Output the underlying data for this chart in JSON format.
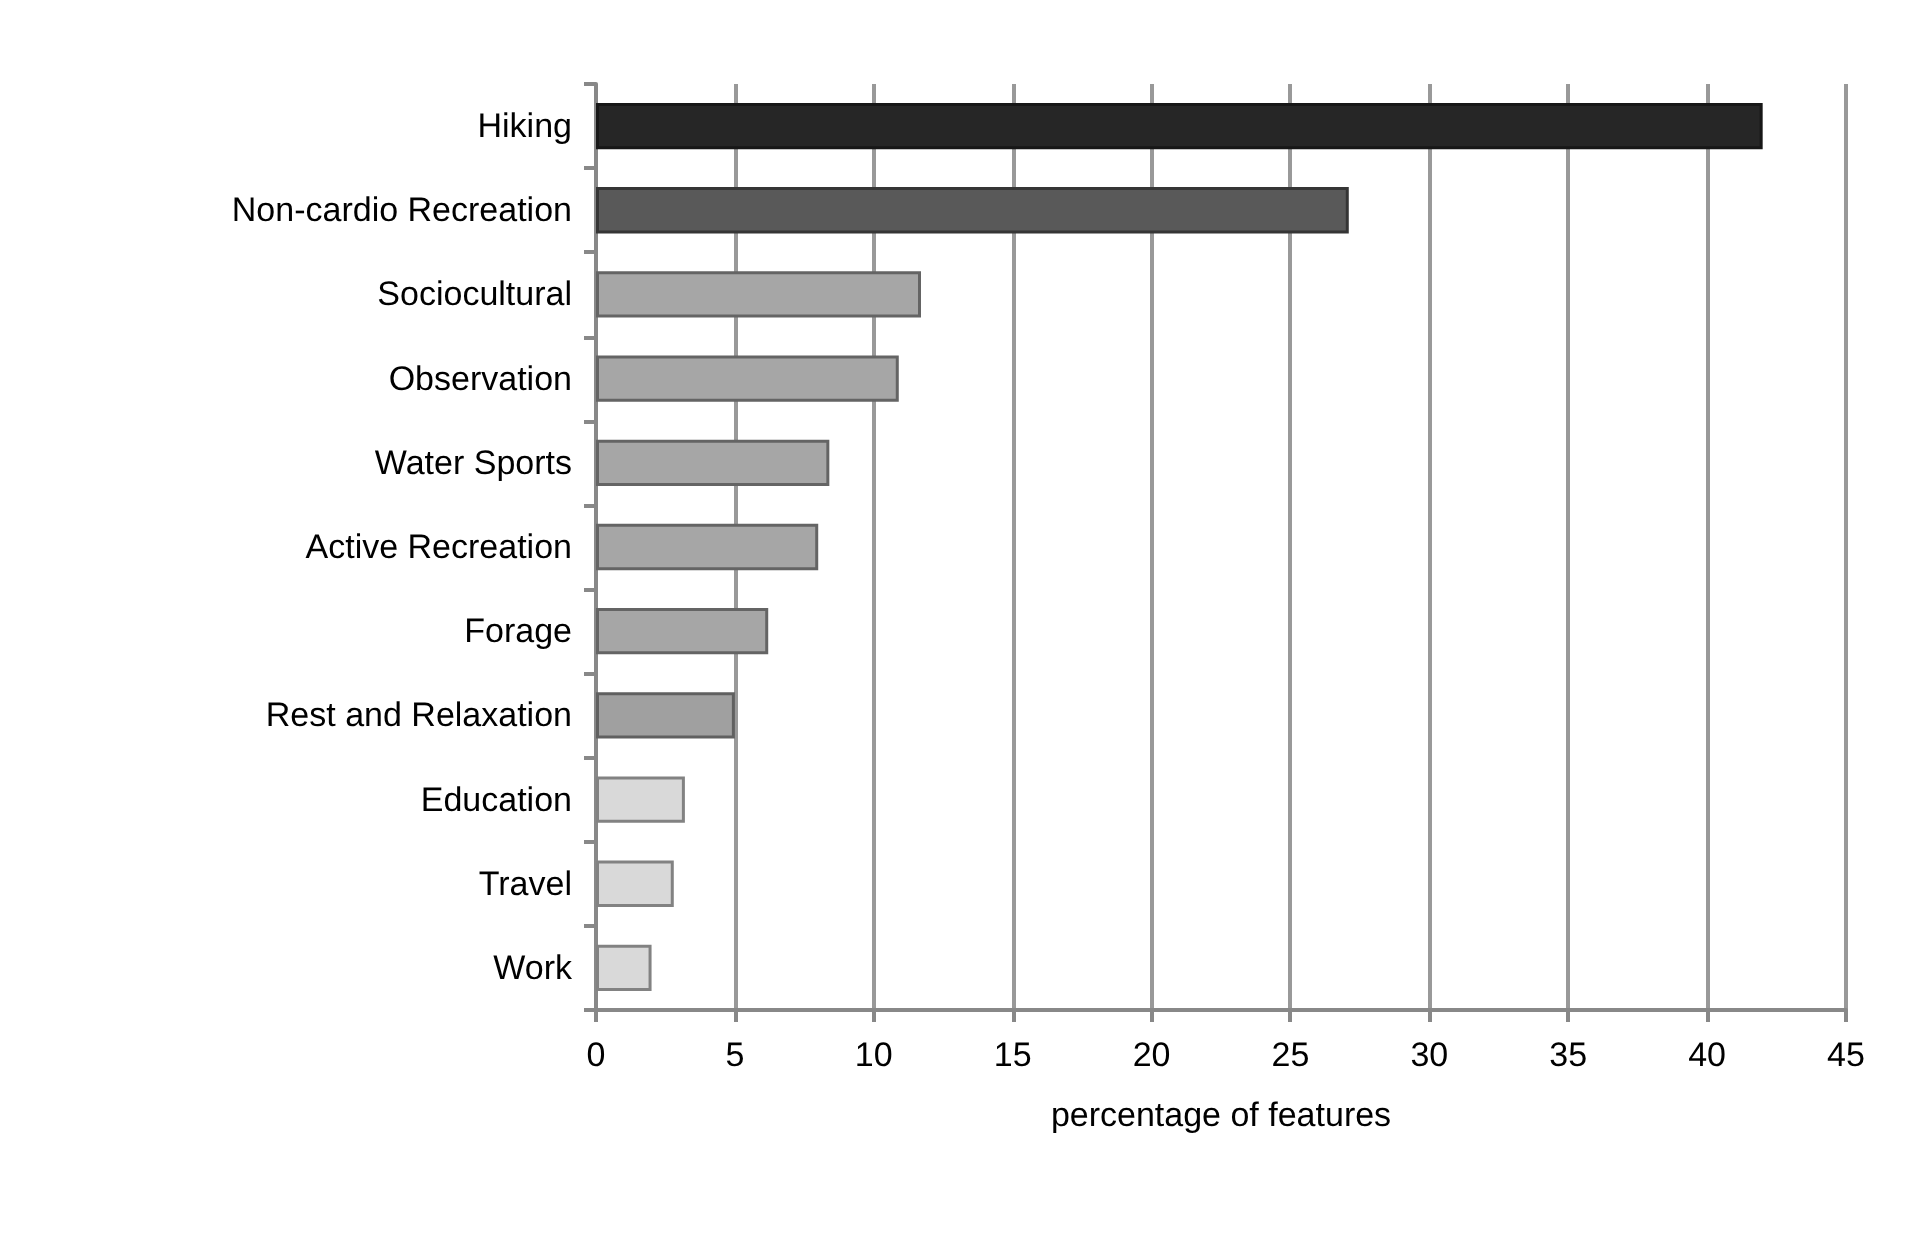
{
  "chart_data": {
    "type": "bar",
    "orientation": "horizontal",
    "xlabel": "percentage of features",
    "categories": [
      "Hiking",
      "Non-cardio Recreation",
      "Sociocultural",
      "Observation",
      "Water Sports",
      "Active Recreation",
      "Forage",
      "Rest and Relaxation",
      "Education",
      "Travel",
      "Work"
    ],
    "values": [
      42,
      27.1,
      11.7,
      10.9,
      8.4,
      8,
      6.2,
      5,
      3.2,
      2.8,
      2
    ],
    "colors": [
      "#262626",
      "#595959",
      "#a6a6a6",
      "#a6a6a6",
      "#a6a6a6",
      "#a6a6a6",
      "#a6a6a6",
      "#a0a0a0",
      "#d9d9d9",
      "#d9d9d9",
      "#d9d9d9"
    ],
    "xlim": [
      0,
      45
    ],
    "xticks": [
      0,
      5,
      10,
      15,
      20,
      25,
      30,
      35,
      40,
      45
    ],
    "grid": "x"
  }
}
